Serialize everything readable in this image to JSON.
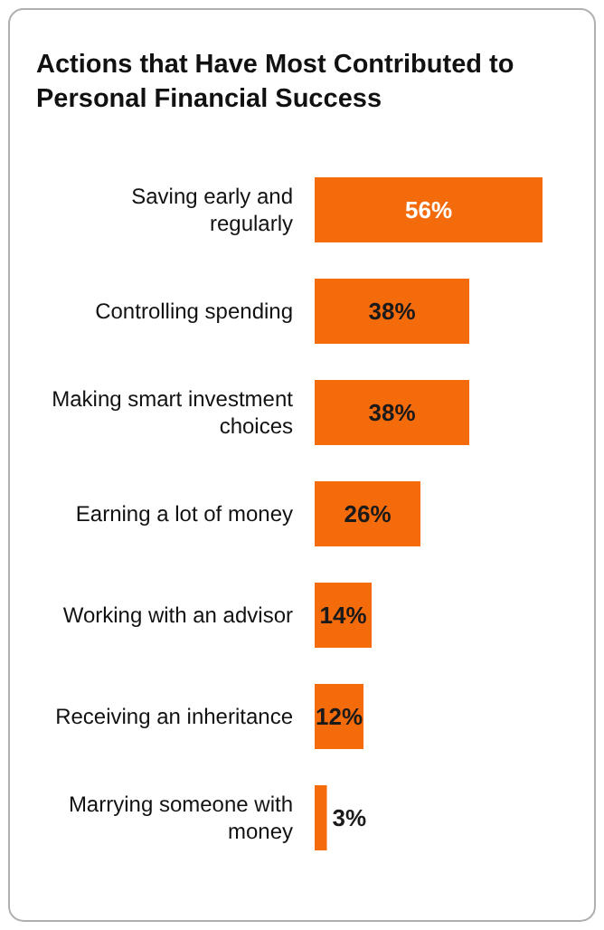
{
  "chart_data": {
    "type": "bar",
    "orientation": "horizontal",
    "title": "Actions that Have Most Contributed to Personal Financial Success",
    "categories": [
      "Saving early and regularly",
      "Controlling spending",
      "Making smart investment choices",
      "Earning a lot of money",
      "Working with an advisor",
      "Receiving an inheritance",
      "Marrying someone with money"
    ],
    "values": [
      56,
      38,
      38,
      26,
      14,
      12,
      3
    ],
    "value_labels": [
      "56%",
      "38%",
      "38%",
      "26%",
      "14%",
      "12%",
      "3%"
    ],
    "color": "#f46b0c"
  }
}
